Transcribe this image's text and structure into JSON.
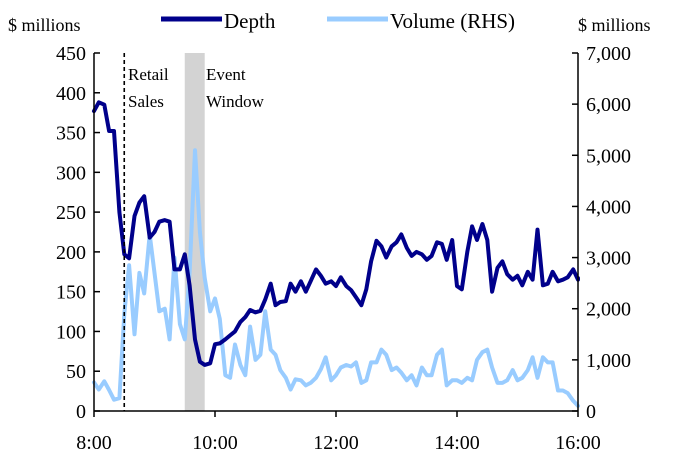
{
  "chart_data": {
    "type": "line",
    "left_axis_unit": "$ millions",
    "right_axis_unit": "$ millions",
    "left_ylim": [
      0,
      450
    ],
    "left_yticks": [
      "0",
      "50",
      "100",
      "150",
      "200",
      "250",
      "300",
      "350",
      "400",
      "450"
    ],
    "right_ylim": [
      0,
      7000
    ],
    "right_yticks": [
      "0",
      "1,000",
      "2,000",
      "3,000",
      "4,000",
      "5,000",
      "6,000",
      "7,000"
    ],
    "xlim": [
      8,
      16
    ],
    "xticks": [
      "8:00",
      "10:00",
      "12:00",
      "14:00",
      "16:00"
    ],
    "legend": {
      "placement": "top-center",
      "entries": [
        "Depth",
        "Volume (RHS)"
      ]
    },
    "colors": {
      "depth": "#00008b",
      "volume": "#99ccff",
      "event_band": "#d3d3d3"
    },
    "annotations": {
      "retail_sales": {
        "label_line1": "Retail",
        "label_line2": "Sales",
        "time": 8.5
      },
      "event_window": {
        "label_line1": "Event",
        "label_line2": "Window",
        "start": 9.5,
        "end": 9.83
      }
    },
    "series": [
      {
        "name": "Depth",
        "axis": "left",
        "points": [
          [
            8.0,
            377
          ],
          [
            8.08,
            388
          ],
          [
            8.17,
            385
          ],
          [
            8.25,
            352
          ],
          [
            8.33,
            352
          ],
          [
            8.42,
            250
          ],
          [
            8.5,
            197
          ],
          [
            8.58,
            192
          ],
          [
            8.67,
            245
          ],
          [
            8.75,
            262
          ],
          [
            8.83,
            270
          ],
          [
            8.92,
            218
          ],
          [
            9.0,
            225
          ],
          [
            9.08,
            238
          ],
          [
            9.17,
            240
          ],
          [
            9.25,
            238
          ],
          [
            9.33,
            178
          ],
          [
            9.42,
            178
          ],
          [
            9.5,
            197
          ],
          [
            9.58,
            158
          ],
          [
            9.67,
            90
          ],
          [
            9.75,
            62
          ],
          [
            9.83,
            58
          ],
          [
            9.92,
            60
          ],
          [
            10.0,
            84
          ],
          [
            10.08,
            85
          ],
          [
            10.17,
            90
          ],
          [
            10.25,
            95
          ],
          [
            10.33,
            100
          ],
          [
            10.42,
            112
          ],
          [
            10.5,
            118
          ],
          [
            10.58,
            127
          ],
          [
            10.67,
            124
          ],
          [
            10.75,
            126
          ],
          [
            10.83,
            140
          ],
          [
            10.92,
            160
          ],
          [
            11.0,
            133
          ],
          [
            11.08,
            137
          ],
          [
            11.17,
            138
          ],
          [
            11.25,
            160
          ],
          [
            11.33,
            150
          ],
          [
            11.42,
            163
          ],
          [
            11.5,
            150
          ],
          [
            11.58,
            163
          ],
          [
            11.67,
            178
          ],
          [
            11.75,
            170
          ],
          [
            11.83,
            160
          ],
          [
            11.92,
            163
          ],
          [
            12.0,
            157
          ],
          [
            12.08,
            168
          ],
          [
            12.17,
            157
          ],
          [
            12.25,
            152
          ],
          [
            12.33,
            143
          ],
          [
            12.42,
            133
          ],
          [
            12.5,
            153
          ],
          [
            12.58,
            188
          ],
          [
            12.67,
            214
          ],
          [
            12.75,
            207
          ],
          [
            12.83,
            193
          ],
          [
            12.92,
            207
          ],
          [
            13.0,
            212
          ],
          [
            13.08,
            222
          ],
          [
            13.17,
            205
          ],
          [
            13.25,
            195
          ],
          [
            13.33,
            200
          ],
          [
            13.42,
            197
          ],
          [
            13.5,
            190
          ],
          [
            13.58,
            195
          ],
          [
            13.67,
            212
          ],
          [
            13.75,
            210
          ],
          [
            13.83,
            190
          ],
          [
            13.92,
            215
          ],
          [
            14.0,
            157
          ],
          [
            14.08,
            153
          ],
          [
            14.17,
            200
          ],
          [
            14.25,
            232
          ],
          [
            14.33,
            215
          ],
          [
            14.42,
            235
          ],
          [
            14.5,
            215
          ],
          [
            14.58,
            150
          ],
          [
            14.67,
            180
          ],
          [
            14.75,
            188
          ],
          [
            14.83,
            172
          ],
          [
            14.92,
            165
          ],
          [
            15.0,
            170
          ],
          [
            15.08,
            158
          ],
          [
            15.17,
            175
          ],
          [
            15.25,
            165
          ],
          [
            15.33,
            228
          ],
          [
            15.42,
            158
          ],
          [
            15.5,
            160
          ],
          [
            15.58,
            175
          ],
          [
            15.67,
            163
          ],
          [
            15.75,
            165
          ],
          [
            15.83,
            168
          ],
          [
            15.92,
            178
          ],
          [
            16.0,
            165
          ],
          [
            16.08,
            167
          ]
        ]
      },
      {
        "name": "Volume (RHS)",
        "axis": "right",
        "points": [
          [
            8.0,
            560
          ],
          [
            8.08,
            420
          ],
          [
            8.17,
            580
          ],
          [
            8.25,
            410
          ],
          [
            8.33,
            220
          ],
          [
            8.42,
            250
          ],
          [
            8.5,
            1900
          ],
          [
            8.58,
            2850
          ],
          [
            8.67,
            1500
          ],
          [
            8.75,
            2700
          ],
          [
            8.83,
            2300
          ],
          [
            8.92,
            3450
          ],
          [
            9.0,
            2700
          ],
          [
            9.08,
            1950
          ],
          [
            9.17,
            2000
          ],
          [
            9.25,
            1400
          ],
          [
            9.33,
            3000
          ],
          [
            9.42,
            1700
          ],
          [
            9.5,
            1400
          ],
          [
            9.58,
            2700
          ],
          [
            9.67,
            5100
          ],
          [
            9.75,
            3500
          ],
          [
            9.83,
            2600
          ],
          [
            9.92,
            1950
          ],
          [
            10.0,
            2200
          ],
          [
            10.08,
            1800
          ],
          [
            10.17,
            700
          ],
          [
            10.25,
            650
          ],
          [
            10.33,
            1300
          ],
          [
            10.42,
            900
          ],
          [
            10.5,
            700
          ],
          [
            10.58,
            1650
          ],
          [
            10.67,
            1000
          ],
          [
            10.75,
            1100
          ],
          [
            10.83,
            1950
          ],
          [
            10.92,
            1200
          ],
          [
            11.0,
            1100
          ],
          [
            11.08,
            800
          ],
          [
            11.17,
            650
          ],
          [
            11.25,
            420
          ],
          [
            11.33,
            620
          ],
          [
            11.42,
            600
          ],
          [
            11.5,
            500
          ],
          [
            11.58,
            550
          ],
          [
            11.67,
            650
          ],
          [
            11.75,
            820
          ],
          [
            11.83,
            1050
          ],
          [
            11.92,
            600
          ],
          [
            12.0,
            700
          ],
          [
            12.08,
            850
          ],
          [
            12.17,
            900
          ],
          [
            12.25,
            870
          ],
          [
            12.33,
            950
          ],
          [
            12.42,
            550
          ],
          [
            12.5,
            600
          ],
          [
            12.58,
            950
          ],
          [
            12.67,
            950
          ],
          [
            12.75,
            1200
          ],
          [
            12.83,
            1100
          ],
          [
            12.92,
            800
          ],
          [
            13.0,
            850
          ],
          [
            13.08,
            750
          ],
          [
            13.17,
            600
          ],
          [
            13.25,
            700
          ],
          [
            13.33,
            500
          ],
          [
            13.42,
            850
          ],
          [
            13.5,
            700
          ],
          [
            13.58,
            700
          ],
          [
            13.67,
            1100
          ],
          [
            13.75,
            1200
          ],
          [
            13.83,
            500
          ],
          [
            13.92,
            600
          ],
          [
            14.0,
            600
          ],
          [
            14.08,
            550
          ],
          [
            14.17,
            650
          ],
          [
            14.25,
            600
          ],
          [
            14.33,
            1000
          ],
          [
            14.42,
            1150
          ],
          [
            14.5,
            1200
          ],
          [
            14.58,
            850
          ],
          [
            14.67,
            550
          ],
          [
            14.75,
            550
          ],
          [
            14.83,
            600
          ],
          [
            14.92,
            800
          ],
          [
            15.0,
            600
          ],
          [
            15.08,
            650
          ],
          [
            15.17,
            800
          ],
          [
            15.25,
            1050
          ],
          [
            15.33,
            650
          ],
          [
            15.42,
            1050
          ],
          [
            15.5,
            950
          ],
          [
            15.58,
            950
          ],
          [
            15.67,
            400
          ],
          [
            15.75,
            400
          ],
          [
            15.83,
            350
          ],
          [
            15.92,
            200
          ],
          [
            16.0,
            100
          ]
        ]
      }
    ]
  }
}
